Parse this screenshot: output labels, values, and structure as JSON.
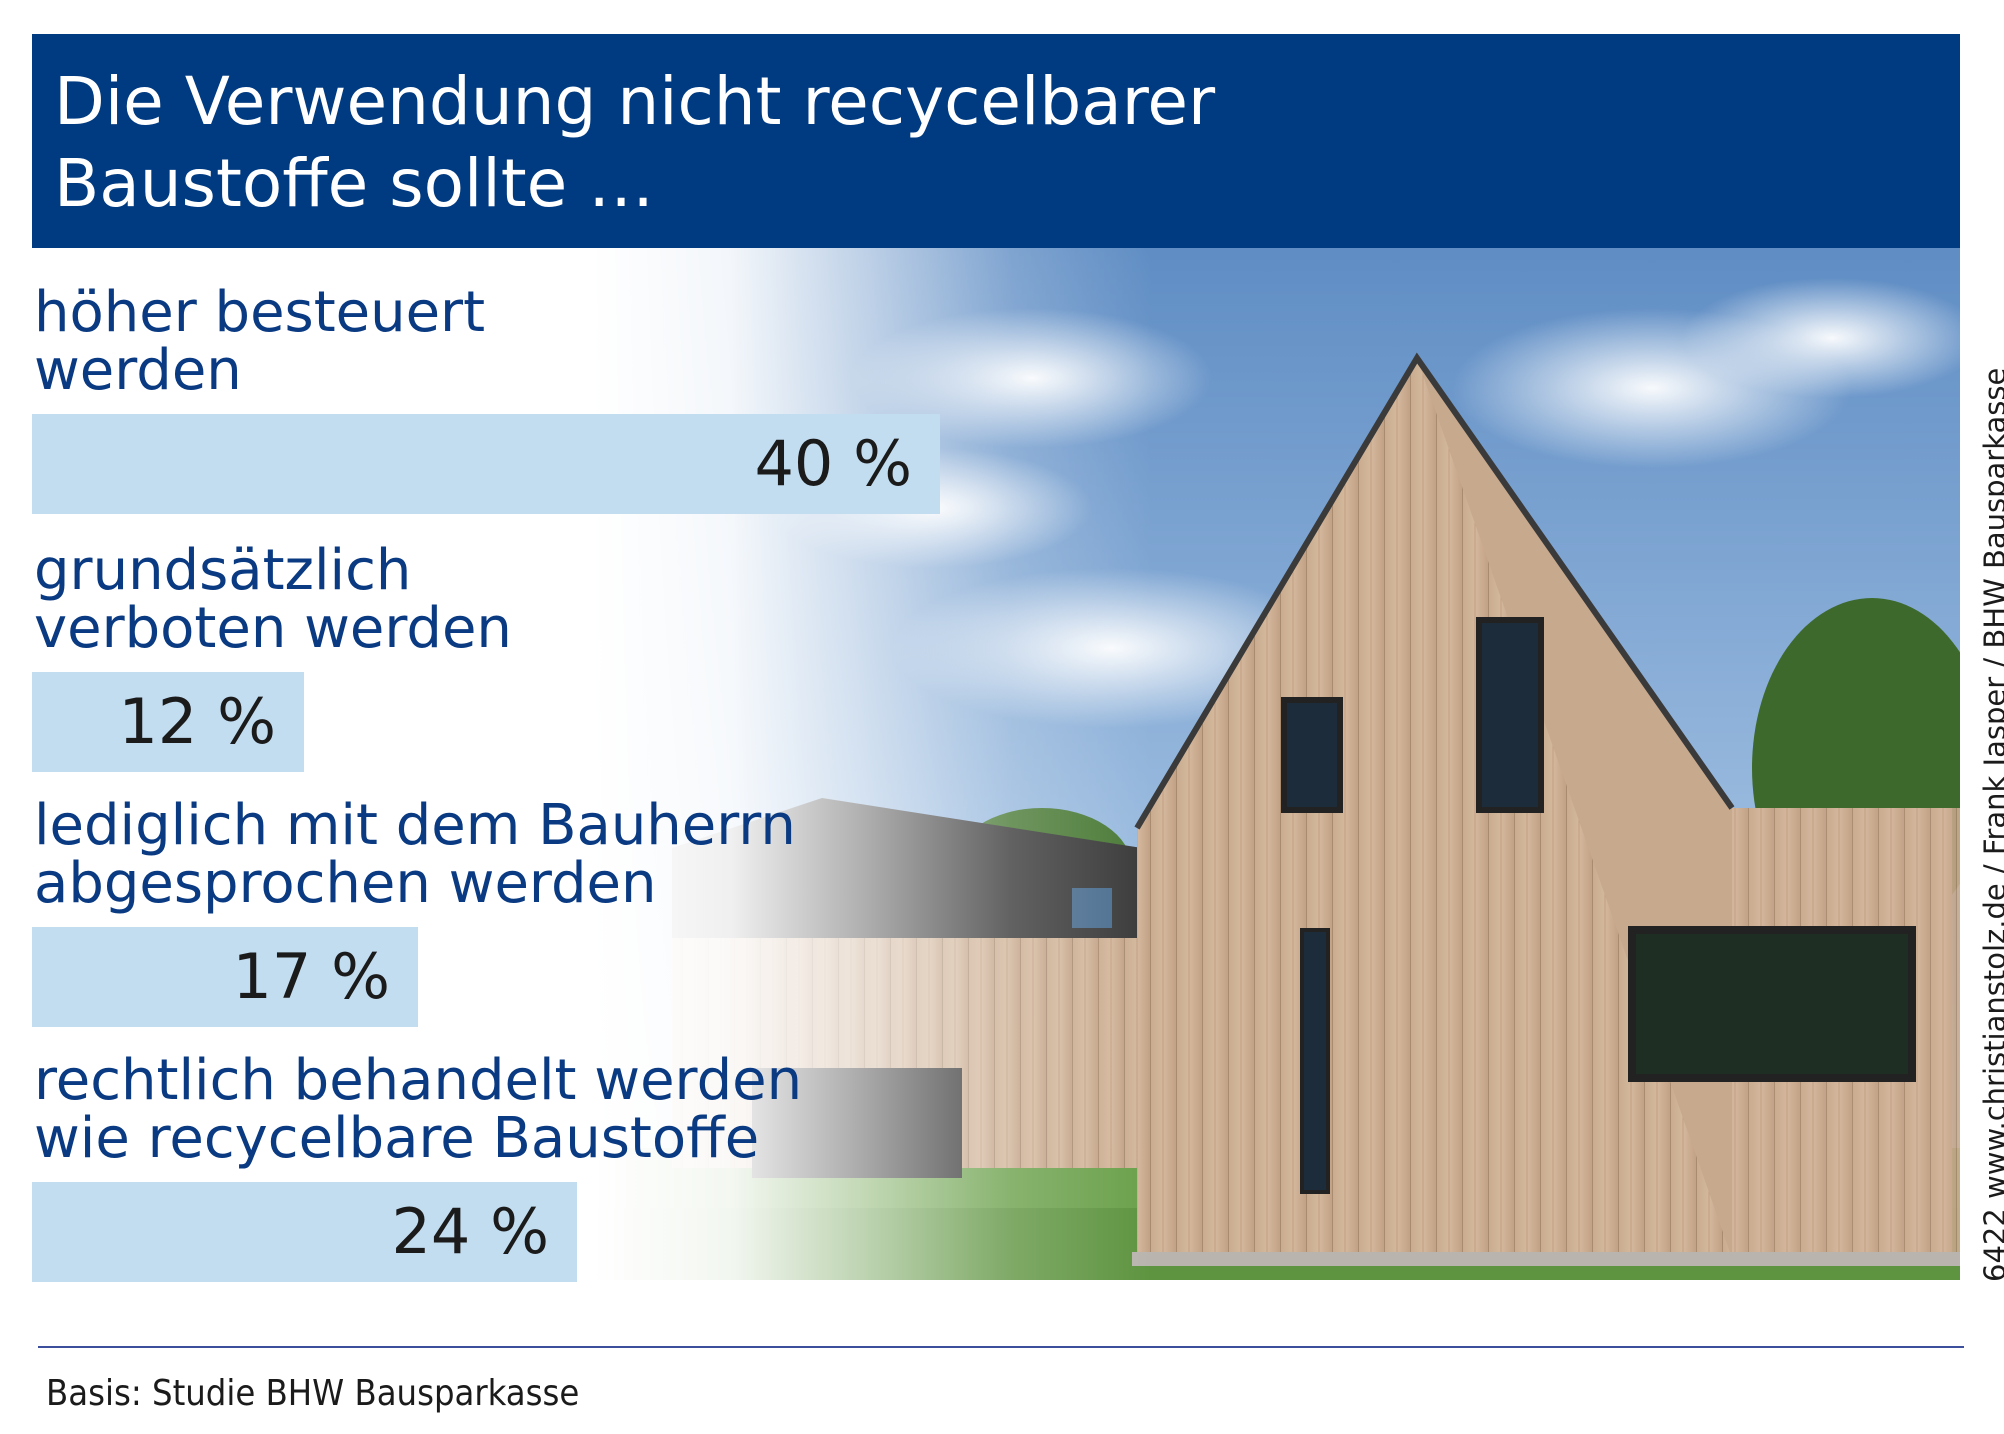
{
  "header": {
    "title_line_1": "Die Verwendung nicht recycelbarer",
    "title_line_2": "Baustoffe sollte …"
  },
  "chart_data": {
    "type": "bar",
    "orientation": "horizontal",
    "categories": [
      [
        "höher besteuert",
        "werden"
      ],
      [
        "grundsätzlich",
        "verboten werden"
      ],
      [
        "lediglich mit dem Bauherrn",
        "abgesprochen werden"
      ],
      [
        "rechtlich behandelt werden",
        "wie recycelbare Baustoffe"
      ]
    ],
    "values": [
      40,
      12,
      17,
      24
    ],
    "value_labels": [
      "40 %",
      "12 %",
      "17 %",
      "24 %"
    ],
    "unit": "%",
    "bar_color": "#c2dcf0",
    "label_color": "#0a3a82",
    "grid": false,
    "legend": "none"
  },
  "credit": "6422 www.christianstolz.de / Frank Jasper / BHW Bausparkasse",
  "footer": {
    "source": "Basis: Studie BHW Bausparkasse"
  },
  "colors": {
    "header_bg": "#003a80",
    "header_text": "#ffffff",
    "rule": "#3b4f9c"
  },
  "background_image": "wooden-house-photo"
}
